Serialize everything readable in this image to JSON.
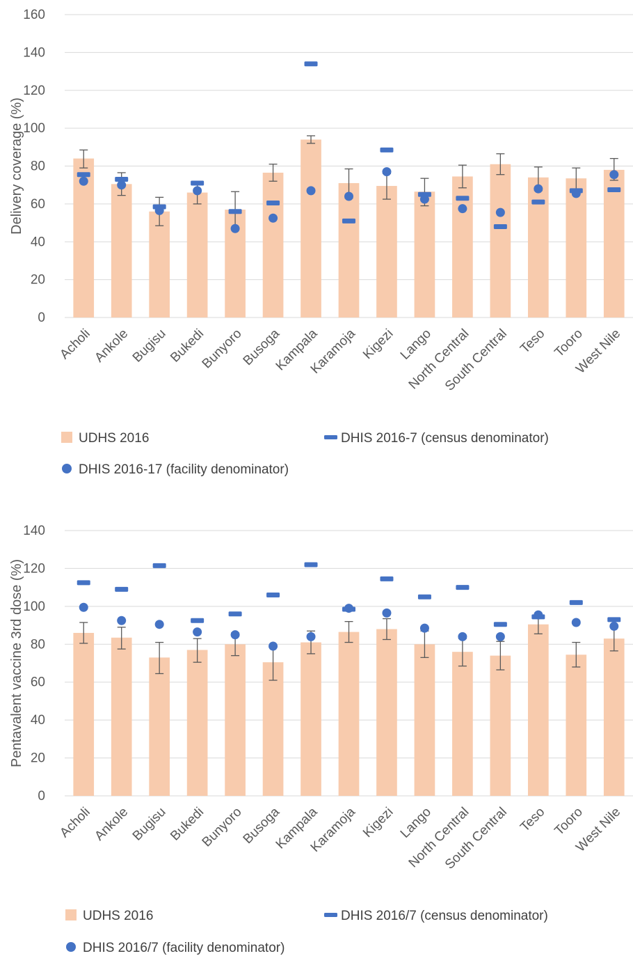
{
  "colors": {
    "bar": "#F8CBAD",
    "census_marker": "#4472C4",
    "facility_marker": "#4472C4",
    "error_bar": "#595959",
    "grid": "#D9D9D9"
  },
  "chart_data": [
    {
      "type": "bar",
      "ylabel": "Delivery coverage (%)",
      "ylim": [
        0,
        160
      ],
      "ytick_step": 20,
      "grid": true,
      "legend_position": "bottom",
      "categories": [
        "Acholi",
        "Ankole",
        "Bugisu",
        "Bukedi",
        "Bunyoro",
        "Busoga",
        "Kampala",
        "Karamoja",
        "Kigezi",
        "Lango",
        "North Central",
        "South Central",
        "Teso",
        "Tooro",
        "West Nile"
      ],
      "series": [
        {
          "name": "UDHS 2016",
          "kind": "bar",
          "values": [
            84,
            70.5,
            56,
            66,
            57,
            76.5,
            94,
            71,
            69.5,
            66.5,
            74.5,
            81,
            74,
            73.5,
            78
          ],
          "error_low": [
            79,
            64.5,
            48.5,
            60,
            47,
            72,
            92,
            63,
            62.5,
            59,
            68.5,
            75.5,
            67,
            67,
            72.5
          ],
          "error_high": [
            88.5,
            76.5,
            63.5,
            72,
            66.5,
            81,
            96,
            78.5,
            76,
            73.5,
            80.5,
            86.5,
            79.5,
            79,
            84
          ]
        },
        {
          "name": "DHIS 2016-7 (census denominator)",
          "kind": "dash",
          "values": [
            75.5,
            73,
            58.5,
            71,
            56,
            60.5,
            134,
            51,
            88.5,
            65,
            63,
            48,
            61,
            67,
            67.5
          ]
        },
        {
          "name": "DHIS 2016-17 (facility denominator)",
          "kind": "dot",
          "values": [
            72,
            70,
            56.5,
            67,
            47,
            52.5,
            67,
            64,
            77,
            62.5,
            57.5,
            55.5,
            68,
            65.5,
            75.5
          ]
        }
      ]
    },
    {
      "type": "bar",
      "ylabel": "Pentavalent vaccine 3rd dose (%)",
      "ylim": [
        0,
        140
      ],
      "ytick_step": 20,
      "grid": true,
      "legend_position": "bottom",
      "categories": [
        "Acholi",
        "Ankole",
        "Bugisu",
        "Bukedi",
        "Bunyoro",
        "Busoga",
        "Kampala",
        "Karamoja",
        "Kigezi",
        "Lango",
        "North Central",
        "South Central",
        "Teso",
        "Tooro",
        "West Nile"
      ],
      "series": [
        {
          "name": "UDHS 2016",
          "kind": "bar",
          "values": [
            86,
            83.5,
            73,
            77,
            80,
            70.5,
            81,
            86.5,
            88,
            80,
            76,
            74,
            90.5,
            74.5,
            83
          ],
          "error_low": [
            80.5,
            77.5,
            64.5,
            70.5,
            74,
            61,
            75,
            81,
            82.5,
            73,
            68.5,
            66.5,
            85.5,
            68,
            76.5
          ],
          "error_high": [
            91.5,
            89,
            81,
            83,
            86,
            79,
            87,
            92,
            93.5,
            87,
            83,
            81.5,
            95.5,
            81,
            89
          ]
        },
        {
          "name": "DHIS 2016/7 (census denominator)",
          "kind": "dash",
          "values": [
            112.5,
            109,
            121.5,
            92.5,
            96,
            106,
            122,
            98.5,
            114.5,
            105,
            110,
            90.5,
            94.5,
            102,
            93
          ]
        },
        {
          "name": "DHIS 2016/7 (facility denominator)",
          "kind": "dot",
          "values": [
            99.5,
            92.5,
            90.5,
            86.5,
            85,
            79,
            84,
            99,
            96.5,
            88.5,
            84,
            84,
            95.5,
            91.5,
            89.5
          ]
        }
      ]
    }
  ]
}
